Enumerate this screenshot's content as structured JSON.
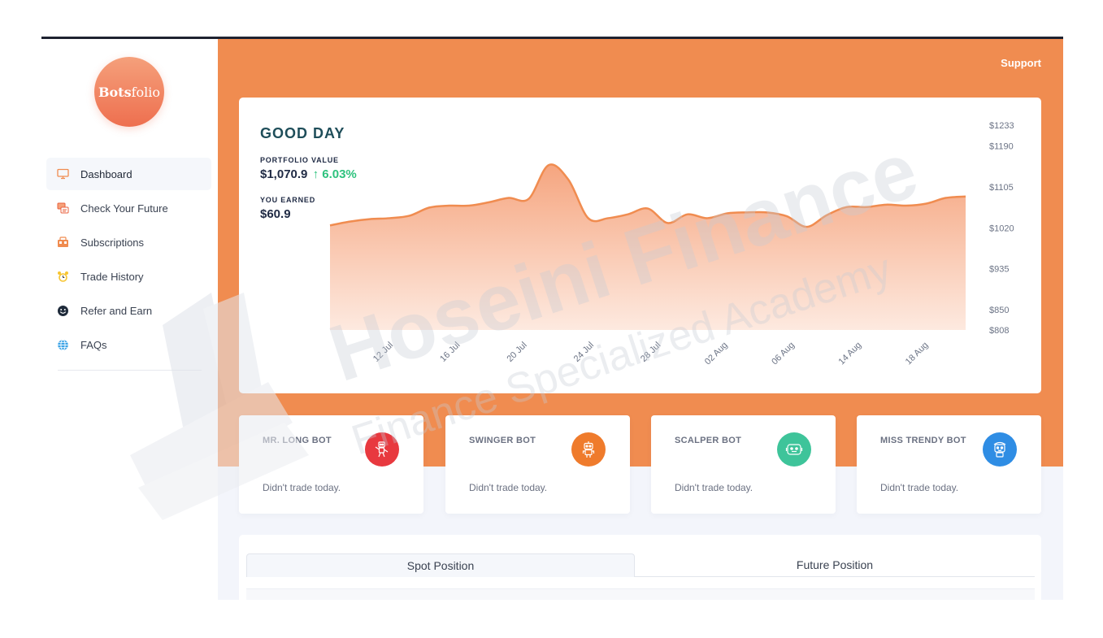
{
  "brand": {
    "logo_bold": "Bots",
    "logo_rest": "folio"
  },
  "sidebar": {
    "items": [
      {
        "label": "Dashboard",
        "icon": "monitor-icon",
        "active": true
      },
      {
        "label": "Check Your Future",
        "icon": "crystal-ball-icon",
        "active": false
      },
      {
        "label": "Subscriptions",
        "icon": "subscription-icon",
        "active": false
      },
      {
        "label": "Trade History",
        "icon": "alarm-clock-icon",
        "active": false
      },
      {
        "label": "Refer and Earn",
        "icon": "smile-icon",
        "active": false
      },
      {
        "label": "FAQs",
        "icon": "globe-icon",
        "active": false
      }
    ]
  },
  "header": {
    "support_label": "Support"
  },
  "portfolio": {
    "greeting": "GOOD DAY",
    "value_label": "PORTFOLIO VALUE",
    "value": "$1,070.9",
    "change": "6.03%",
    "earned_label": "YOU EARNED",
    "earned": "$60.9"
  },
  "chart_data": {
    "type": "area",
    "x_ticks": [
      "12 Jul",
      "16 Jul",
      "20 Jul",
      "24 Jul",
      "28 Jul",
      "02 Aug",
      "06 Aug",
      "14 Aug",
      "18 Aug"
    ],
    "y_ticks": [
      "$1233",
      "$1190",
      "$1105",
      "$1020",
      "$935",
      "$850",
      "$808"
    ],
    "ylim": [
      808,
      1233
    ],
    "points": [
      1025,
      1033,
      1038,
      1040,
      1045,
      1062,
      1066,
      1066,
      1073,
      1082,
      1080,
      1150,
      1120,
      1040,
      1040,
      1048,
      1060,
      1030,
      1048,
      1040,
      1050,
      1052,
      1052,
      1044,
      1022,
      1046,
      1063,
      1063,
      1068,
      1066,
      1070,
      1082,
      1085
    ],
    "color": "#f08c50",
    "grid": false
  },
  "bots": [
    {
      "name": "MR. LONG BOT",
      "status": "Didn't trade today.",
      "icon": "robot-arm-icon",
      "color": "#e8393f"
    },
    {
      "name": "SWINGER BOT",
      "status": "Didn't trade today.",
      "icon": "robot-icon",
      "color": "#ef7b2c"
    },
    {
      "name": "SCALPER BOT",
      "status": "Didn't trade today.",
      "icon": "robot-face-icon",
      "color": "#3ec49a"
    },
    {
      "name": "MISS TRENDY BOT",
      "status": "Didn't trade today.",
      "icon": "robot-girl-icon",
      "color": "#2f8de4"
    }
  ],
  "positions": {
    "tabs": [
      "Spot Position",
      "Future Position"
    ]
  },
  "watermark": {
    "line1": "Hoseini Finance",
    "line2": "Finance Specialized Academy"
  }
}
